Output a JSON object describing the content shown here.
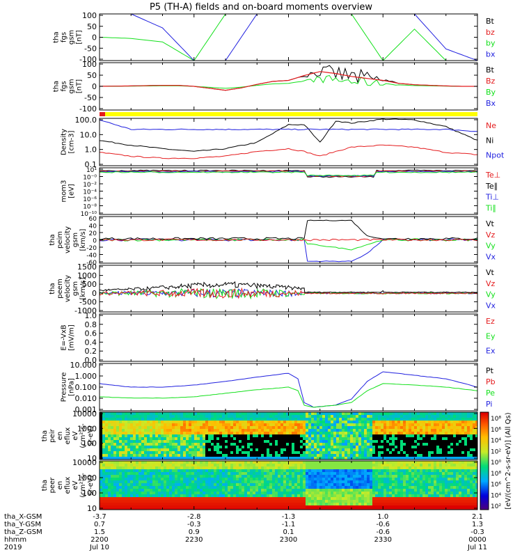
{
  "title": "P5 (TH-A) fields and on-board moments overview",
  "colors": {
    "black": "#000000",
    "red": "#e41a1c",
    "green": "#12e01a",
    "blue": "#1f1fdf",
    "yellow": "#ffff00"
  },
  "chart_data": [
    {
      "id": "fgs",
      "type": "line",
      "ylabel": [
        "tha",
        "fgs",
        "gsm",
        "[nT]"
      ],
      "yticks": [
        "100",
        "50",
        "0",
        "-50",
        "-100"
      ],
      "ylim": [
        -100,
        100
      ],
      "series": [
        {
          "name": "Bt",
          "color": "#000000"
        },
        {
          "name": "bz",
          "color": "#e41a1c"
        },
        {
          "name": "by",
          "color": "#12e01a"
        },
        {
          "name": "bx",
          "color": "#1f1fdf"
        }
      ],
      "x": [
        2200,
        2210,
        2220,
        2230,
        2240,
        2250,
        2300,
        2310,
        2320,
        2330,
        2340,
        2350,
        2400
      ],
      "values_by": [
        0,
        -5,
        -20,
        -100,
        100,
        100,
        100,
        100,
        100,
        -100,
        35,
        -100,
        -100
      ],
      "values_bx": [
        100,
        100,
        40,
        -100,
        -100,
        100,
        100,
        100,
        100,
        100,
        100,
        -50,
        -100
      ]
    },
    {
      "id": "fgs_zoom",
      "type": "line",
      "ylabel": [
        "tha",
        "fgs",
        "gsm",
        "[nT]"
      ],
      "yticks": [
        "100",
        "50",
        "0",
        "-50",
        "-100"
      ],
      "ylim": [
        -120,
        120
      ],
      "series": [
        {
          "name": "Bt",
          "color": "#000000"
        },
        {
          "name": "Bz",
          "color": "#e41a1c"
        },
        {
          "name": "By",
          "color": "#12e01a"
        },
        {
          "name": "Bx",
          "color": "#1f1fdf"
        }
      ],
      "x": [
        2200,
        2210,
        2220,
        2225,
        2230,
        2235,
        2240,
        2245,
        2250,
        2255,
        2300,
        2305,
        2310,
        2315,
        2320,
        2325,
        2330,
        2335,
        2340,
        2345,
        2350,
        2355,
        2400
      ],
      "values_bz": [
        0,
        2,
        5,
        5,
        0,
        -10,
        -20,
        -8,
        10,
        25,
        30,
        55,
        75,
        65,
        50,
        40,
        30,
        15,
        8,
        5,
        2,
        0,
        0
      ]
    },
    {
      "id": "moments",
      "type": "line",
      "ylabel": [
        "Density",
        "[cm-3]"
      ],
      "yticks": [
        "100.0",
        "10.0",
        "1.0",
        "0.1"
      ],
      "ylim": [
        0.1,
        100
      ],
      "scale": "log",
      "series": [
        {
          "name": "Ne",
          "color": "#e41a1c"
        },
        {
          "name": "Ni",
          "color": "#000000"
        },
        {
          "name": "Npot",
          "color": "#1f1fdf"
        }
      ],
      "x": [
        2200,
        2210,
        2220,
        2230,
        2240,
        2250,
        2300,
        2305,
        2310,
        2315,
        2320,
        2330,
        2340,
        2350,
        2400
      ],
      "Ni": [
        4,
        2,
        1.2,
        0.8,
        1.2,
        3,
        40,
        40,
        3,
        70,
        50,
        90,
        80,
        30,
        4
      ],
      "Ne": [
        0.7,
        0.4,
        0.3,
        0.3,
        0.4,
        0.8,
        1.2,
        0.8,
        0.4,
        0.8,
        1.5,
        2,
        1.5,
        0.7,
        0.5
      ],
      "Npot": [
        80,
        20,
        20,
        20,
        20,
        20,
        20,
        20,
        20,
        20,
        20,
        20,
        20,
        20,
        15
      ]
    },
    {
      "id": "temperature",
      "type": "line",
      "ylabel": [
        "mom3",
        "[eV]"
      ],
      "yticks": [
        "10¹",
        "10⁻⁰",
        "10⁻²",
        "10⁻⁴",
        "10⁻⁶",
        "10⁻⁸",
        "10⁻¹⁰"
      ],
      "series": [
        {
          "name": "Te⊥",
          "color": "#e41a1c"
        },
        {
          "name": "Te∥",
          "color": "#000000"
        },
        {
          "name": "Ti⊥",
          "color": "#1f1fdf"
        },
        {
          "name": "Ti∥",
          "color": "#12e01a"
        }
      ]
    },
    {
      "id": "ion_velocity",
      "type": "line",
      "ylabel": [
        "tha",
        "peim",
        "velocity",
        "gsm",
        "[km/s]"
      ],
      "yticks": [
        "60",
        "40",
        "20",
        "0",
        "-20",
        "-40",
        "-60"
      ],
      "ylim": [
        -60,
        60
      ],
      "series": [
        {
          "name": "Vt",
          "color": "#000000"
        },
        {
          "name": "Vz",
          "color": "#e41a1c"
        },
        {
          "name": "Vy",
          "color": "#12e01a"
        },
        {
          "name": "Vx",
          "color": "#1f1fdf"
        }
      ],
      "x": [
        2200,
        2250,
        2305,
        2306,
        2320,
        2325,
        2330,
        2400
      ],
      "Vt": [
        3,
        3,
        3,
        50,
        50,
        10,
        3,
        3
      ],
      "Vy": [
        0,
        0,
        0,
        -10,
        -25,
        -12,
        0,
        0
      ],
      "Vx": [
        0,
        0,
        0,
        -55,
        -55,
        -35,
        0,
        0
      ]
    },
    {
      "id": "electron_velocity",
      "type": "line",
      "ylabel": [
        "tha",
        "peem",
        "velocity",
        "gsm",
        "[km/s]"
      ],
      "yticks": [
        "1500",
        "1000",
        "500",
        "0",
        "-500",
        "-1000"
      ],
      "ylim": [
        -1000,
        1500
      ],
      "series": [
        {
          "name": "Vt",
          "color": "#000000"
        },
        {
          "name": "Vz",
          "color": "#e41a1c"
        },
        {
          "name": "Vy",
          "color": "#12e01a"
        },
        {
          "name": "Vx",
          "color": "#1f1fdf"
        }
      ]
    },
    {
      "id": "efield",
      "type": "line",
      "ylabel": [
        "E=-VxB",
        "[mV/m]"
      ],
      "yticks": [
        "1.0",
        "0.8",
        "0.6",
        "0.4",
        "0.2",
        "0.0"
      ],
      "ylim": [
        0,
        1
      ],
      "series": [
        {
          "name": "Ez",
          "color": "#e41a1c"
        },
        {
          "name": "Ey",
          "color": "#12e01a"
        },
        {
          "name": "Ex",
          "color": "#1f1fdf"
        }
      ]
    },
    {
      "id": "pressure",
      "type": "line",
      "ylabel": [
        "Pressure",
        "[nPa]"
      ],
      "yticks": [
        "10.000",
        "1.000",
        "0.100",
        "0.010",
        "0.001"
      ],
      "ylim": [
        0.001,
        10
      ],
      "scale": "log",
      "series": [
        {
          "name": "Pt",
          "color": "#000000"
        },
        {
          "name": "Pb",
          "color": "#e41a1c"
        },
        {
          "name": "Pe",
          "color": "#12e01a"
        },
        {
          "name": "Pi",
          "color": "#1f1fdf"
        }
      ],
      "x": [
        2200,
        2210,
        2220,
        2230,
        2240,
        2250,
        2300,
        2303,
        2305,
        2308,
        2315,
        2320,
        2325,
        2330,
        2340,
        2350,
        2400
      ],
      "Pi": [
        0.2,
        0.1,
        0.1,
        0.15,
        0.3,
        0.7,
        1.5,
        0.5,
        0.005,
        0.002,
        0.003,
        0.01,
        0.3,
        2,
        1,
        0.5,
        0.1
      ],
      "Pe": [
        0.015,
        0.012,
        0.012,
        0.015,
        0.03,
        0.06,
        0.1,
        0.05,
        0.003,
        0.002,
        0.003,
        0.005,
        0.05,
        0.2,
        0.15,
        0.1,
        0.05
      ]
    },
    {
      "id": "ion_spectrogram",
      "type": "heatmap",
      "ylabel": [
        "tha",
        "peir",
        "en",
        "eflux",
        "eV",
        "(cm²-s-",
        "sr-eV)"
      ],
      "yticks": [
        "10000",
        "1000",
        "100",
        "10"
      ],
      "colorbar_ticks": [
        "10⁸",
        "10⁶",
        "10⁴",
        "10²",
        "10⁰"
      ]
    },
    {
      "id": "electron_spectrogram",
      "type": "heatmap",
      "ylabel": [
        "tha",
        "peer",
        "en",
        "eflux",
        "eV",
        "(cm²-s-",
        "sr-eV)"
      ],
      "yticks": [
        "10000",
        "1000",
        "100",
        "10"
      ],
      "colorbar_ticks": [
        "10⁸",
        "10⁶",
        "10⁴",
        "10²"
      ]
    }
  ],
  "colorbar_label": "[eV/(cm^2-s-sr-eV)] (All Qs)",
  "bottom_axis": {
    "rows": [
      {
        "label": "tha_X-GSM",
        "values": [
          "-3.7",
          "-2.8",
          "-1.3",
          "1.0",
          "2.1"
        ]
      },
      {
        "label": "tha_Y-GSM",
        "values": [
          "0.7",
          "-0.3",
          "-1.1",
          "-0.6",
          "1.3"
        ]
      },
      {
        "label": "tha_Z-GSM",
        "values": [
          "1.5",
          "0.9",
          "0.1",
          "-0.6",
          "-0.3"
        ]
      },
      {
        "label": "hhmm",
        "values": [
          "2200",
          "2230",
          "2300",
          "2330",
          "0000"
        ]
      },
      {
        "label": "2019",
        "values": [
          "Jul 10",
          "",
          "",
          "",
          "Jul 11"
        ]
      }
    ]
  }
}
